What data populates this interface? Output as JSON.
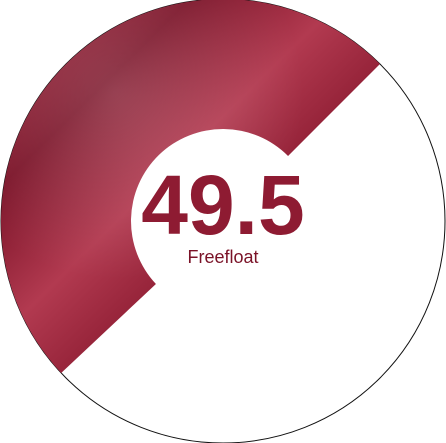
{
  "chart_data": {
    "type": "donut",
    "categories": [
      "Freefloat"
    ],
    "values": [
      49.5
    ],
    "color": "#8e1b32",
    "ylim": [
      0,
      100
    ]
  }
}
